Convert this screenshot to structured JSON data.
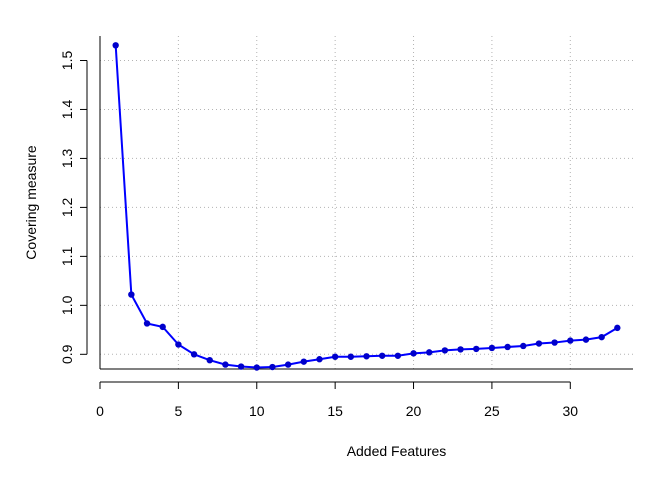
{
  "chart_data": {
    "type": "line",
    "title": "",
    "xlabel": "Added Features",
    "ylabel": "Covering measure",
    "xlim": [
      0,
      34
    ],
    "ylim": [
      0.87,
      1.55
    ],
    "x_ticks": [
      "0",
      "5",
      "10",
      "15",
      "20",
      "25",
      "30"
    ],
    "y_ticks": [
      "0.9",
      "1.0",
      "1.1",
      "1.2",
      "1.3",
      "1.4",
      "1.5"
    ],
    "grid": true,
    "grid_style": "dotted",
    "line_color": "#0000ff",
    "point_color": "#0000cc",
    "grid_color": "#b3b3b3",
    "series": [
      {
        "x": [
          1,
          2,
          3,
          4,
          5,
          6,
          7,
          8,
          9,
          10,
          11,
          12,
          13,
          14,
          15,
          16,
          17,
          18,
          19,
          20,
          21,
          22,
          23,
          24,
          25,
          26,
          27,
          28,
          29,
          30,
          31,
          32,
          33
        ],
        "values": [
          1.531,
          1.022,
          0.963,
          0.956,
          0.92,
          0.9,
          0.888,
          0.879,
          0.875,
          0.873,
          0.874,
          0.879,
          0.885,
          0.89,
          0.895,
          0.895,
          0.896,
          0.897,
          0.897,
          0.902,
          0.904,
          0.908,
          0.91,
          0.911,
          0.913,
          0.915,
          0.917,
          0.922,
          0.924,
          0.928,
          0.93,
          0.935,
          0.954
        ]
      }
    ]
  }
}
